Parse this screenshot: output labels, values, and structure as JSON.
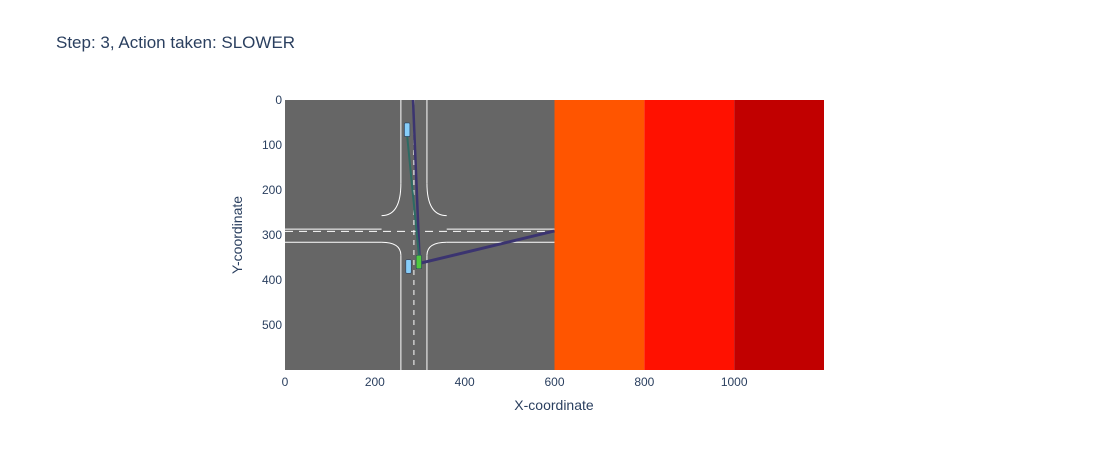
{
  "chart_data": {
    "type": "heatmap",
    "title": "Step: 3, Action taken: SLOWER",
    "xlabel": "X-coordinate",
    "ylabel": "Y-coordinate",
    "xlim": [
      0,
      1200
    ],
    "ylim": [
      600,
      0
    ],
    "x_ticks": [
      0,
      200,
      400,
      600,
      800,
      1000
    ],
    "y_ticks": [
      0,
      100,
      200,
      300,
      400,
      500
    ],
    "grid": false,
    "legend": "none",
    "background_image": {
      "x_range": [
        0,
        600
      ],
      "y_range": [
        0,
        600
      ],
      "road_color": "#666666",
      "lane_line_color": "#ffffff"
    },
    "heat_bands": [
      {
        "x": [
          600,
          800
        ],
        "y": [
          0,
          600
        ],
        "color": "#ff5500"
      },
      {
        "x": [
          800,
          1000
        ],
        "y": [
          0,
          600
        ],
        "color": "#ff1100"
      },
      {
        "x": [
          1000,
          1200
        ],
        "y": [
          0,
          600
        ],
        "color": "#c10000"
      }
    ],
    "vehicles": [
      {
        "x": 272,
        "y": 66,
        "w": 12,
        "h": 30,
        "color": "#87cefa",
        "role": "other"
      },
      {
        "x": 275,
        "y": 370,
        "w": 12,
        "h": 30,
        "color": "#87cefa",
        "role": "other"
      },
      {
        "x": 298,
        "y": 360,
        "w": 12,
        "h": 30,
        "color": "#50c840",
        "role": "ego"
      }
    ],
    "trajectories": [
      {
        "x": [
          300,
          600
        ],
        "y": [
          363,
          291
        ],
        "color": "#3b3470",
        "width": 3
      },
      {
        "x": [
          300,
          285
        ],
        "y": [
          363,
          0
        ],
        "color": "#3b3470",
        "width": 2.5
      },
      {
        "x": [
          300,
          269
        ],
        "y": [
          363,
          50
        ],
        "color": "#2d6b63",
        "width": 2
      }
    ]
  }
}
